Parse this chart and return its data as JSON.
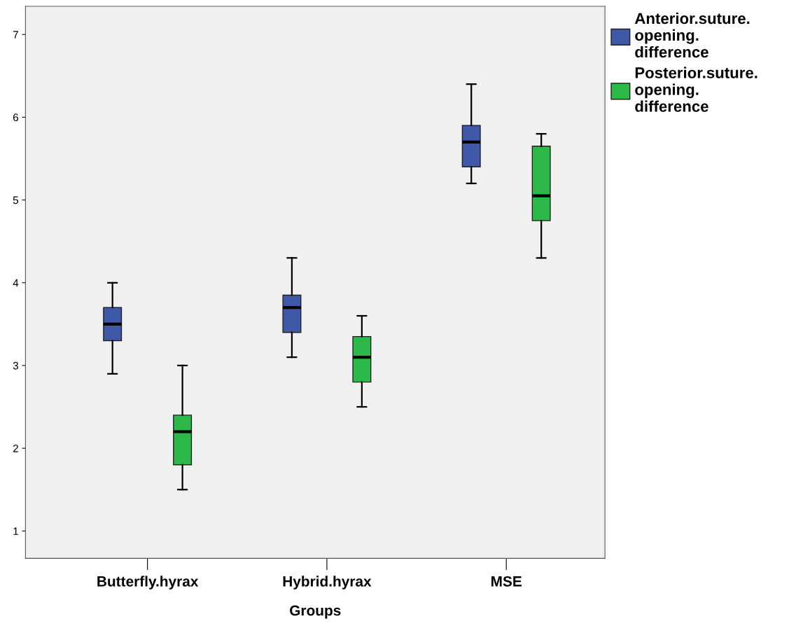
{
  "chart_data": {
    "type": "box",
    "xlabel": "Groups",
    "categories": [
      "Butterfly.hyrax",
      "Hybrid.hyrax",
      "MSE"
    ],
    "series": [
      {
        "name": "Anterior.suture.\nopening.\ndifference",
        "color": "#3f58a8",
        "boxes": [
          {
            "low": 2.9,
            "q1": 3.3,
            "median": 3.5,
            "q3": 3.7,
            "high": 4.0
          },
          {
            "low": 3.1,
            "q1": 3.4,
            "median": 3.7,
            "q3": 3.85,
            "high": 4.3
          },
          {
            "low": 5.2,
            "q1": 5.4,
            "median": 5.7,
            "q3": 5.9,
            "high": 6.4
          }
        ]
      },
      {
        "name": "Posterior.suture.\nopening.\ndifference",
        "color": "#2db84a",
        "boxes": [
          {
            "low": 1.5,
            "q1": 1.8,
            "median": 2.2,
            "q3": 2.4,
            "high": 3.0
          },
          {
            "low": 2.5,
            "q1": 2.8,
            "median": 3.1,
            "q3": 3.35,
            "high": 3.6
          },
          {
            "low": 4.3,
            "q1": 4.75,
            "median": 5.05,
            "q3": 5.65,
            "high": 5.8
          }
        ]
      }
    ],
    "ylim": [
      0.67,
      7.34
    ],
    "yticks": [
      1,
      2,
      3,
      4,
      5,
      6,
      7
    ],
    "grid": false,
    "legend": "top right"
  }
}
